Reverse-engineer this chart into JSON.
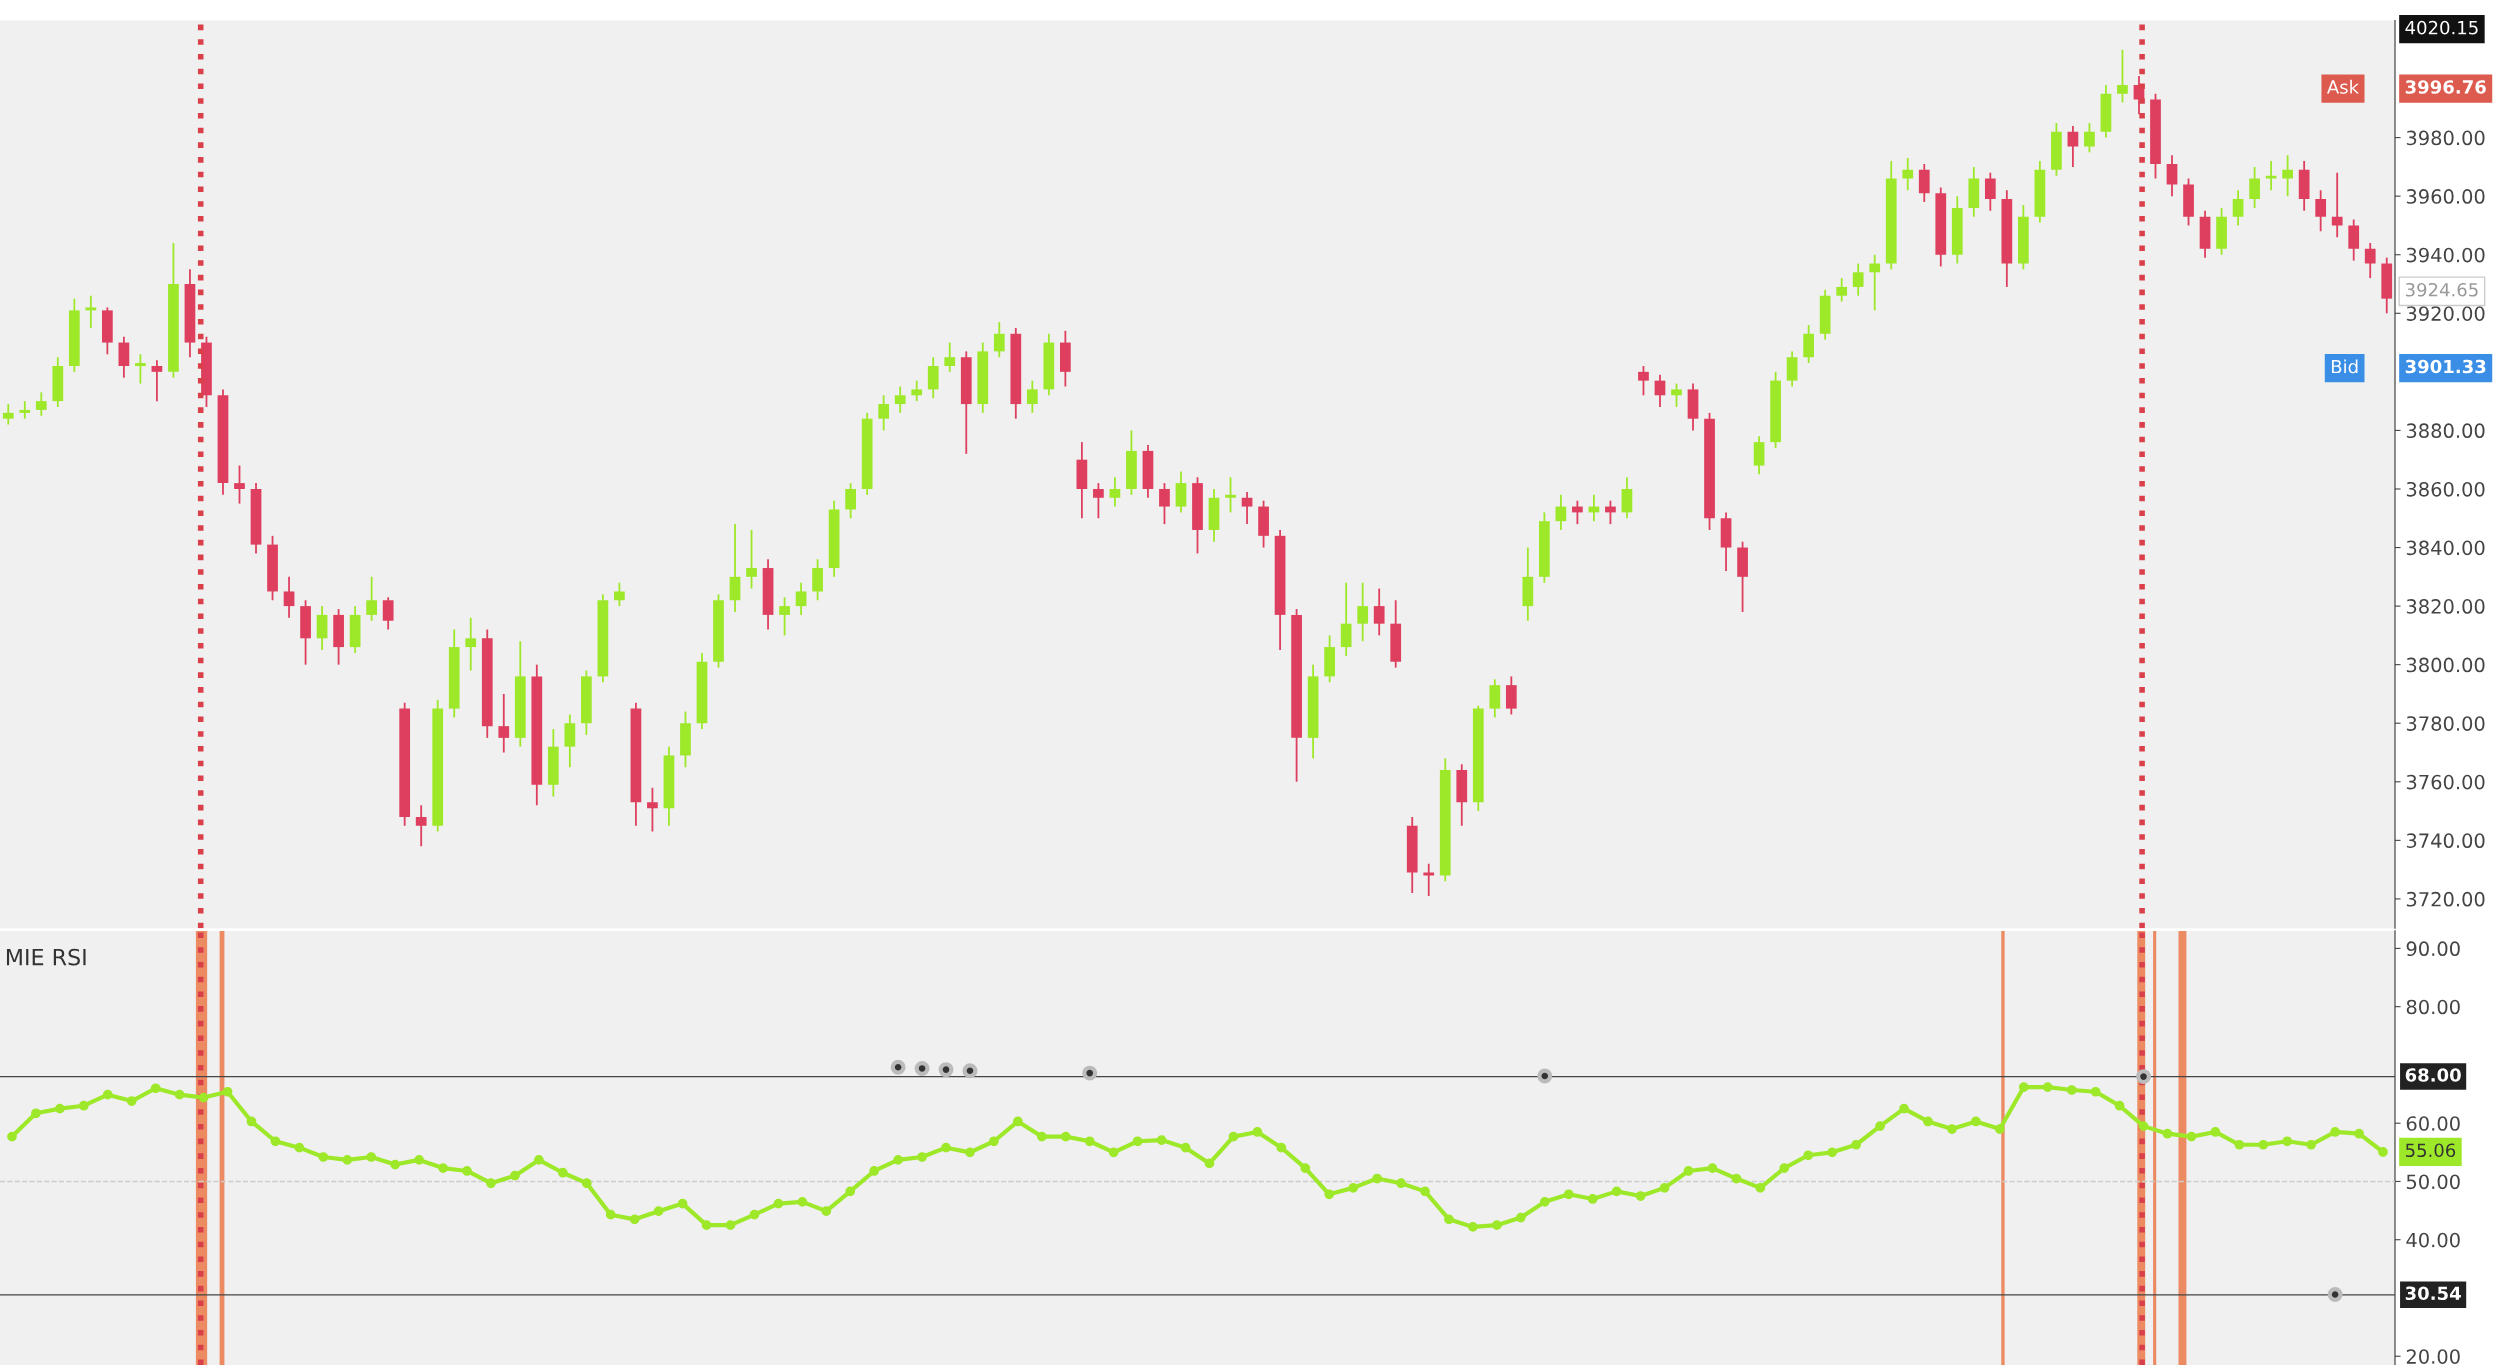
{
  "chart_data": [
    {
      "type": "candlestick",
      "ylim": [
        3710,
        4020
      ],
      "tick_labels": "y",
      "grid": false,
      "yticks": [
        {
          "value": 3720,
          "label": "3720.00"
        },
        {
          "value": 3740,
          "label": "3740.00"
        },
        {
          "value": 3760,
          "label": "3760.00"
        },
        {
          "value": 3780,
          "label": "3780.00"
        },
        {
          "value": 3800,
          "label": "3800.00"
        },
        {
          "value": 3820,
          "label": "3820.00"
        },
        {
          "value": 3840,
          "label": "3840.00"
        },
        {
          "value": 3860,
          "label": "3860.00"
        },
        {
          "value": 3880,
          "label": "3880.00"
        },
        {
          "value": 3920,
          "label": "3920.00"
        },
        {
          "value": 3940,
          "label": "3940.00"
        },
        {
          "value": 3960,
          "label": "3960.00"
        },
        {
          "value": 3980,
          "label": "3980.00"
        }
      ],
      "categories": [
        null,
        null,
        null,
        null,
        null,
        null,
        null,
        null,
        null,
        null,
        null,
        null,
        null,
        null,
        null,
        null,
        null,
        null,
        null,
        null,
        null,
        null,
        null,
        null,
        null,
        null,
        null,
        null,
        null,
        null,
        null,
        null,
        null,
        null,
        null,
        null,
        null,
        null,
        null,
        null,
        null,
        null,
        null,
        null,
        null,
        null,
        null,
        null,
        null,
        null,
        null,
        null,
        null,
        null,
        null,
        null,
        null,
        null,
        null,
        null,
        null,
        null,
        null,
        null,
        null,
        null,
        null,
        null,
        null,
        null,
        null,
        null,
        null,
        null,
        null,
        null,
        null,
        null,
        null,
        null,
        null,
        null,
        null,
        null,
        null,
        null,
        null,
        null,
        null,
        null,
        null,
        null,
        null,
        null,
        null,
        null,
        null,
        null,
        null,
        null,
        null,
        null,
        null,
        null,
        null,
        null,
        null,
        null,
        null,
        null,
        null,
        null,
        null,
        null,
        null,
        null,
        null,
        null,
        null,
        null,
        null,
        null,
        null,
        null,
        null,
        null,
        null,
        null,
        null,
        null,
        null,
        null,
        null,
        null,
        null,
        null,
        null,
        null,
        null,
        null,
        null,
        null,
        null,
        null,
        null
      ],
      "colors": [
        "#9ee82a",
        "#9ee82a",
        "#9ee82a",
        "#9ee82a",
        "#9ee82a",
        "#9ee82a",
        "#de3f5f",
        "#de3f5f",
        "#9ee82a",
        "#de3f5f",
        "#9ee82a",
        "#de3f5f",
        "#de3f5f",
        "#de3f5f",
        "#de3f5f",
        "#de3f5f",
        "#de3f5f",
        "#de3f5f",
        "#de3f5f",
        "#9ee82a",
        "#de3f5f",
        "#9ee82a",
        "#9ee82a",
        "#de3f5f",
        "#de3f5f",
        "#de3f5f",
        "#9ee82a",
        "#9ee82a",
        "#9ee82a",
        "#de3f5f",
        "#de3f5f",
        "#9ee82a",
        "#de3f5f",
        "#9ee82a",
        "#9ee82a",
        "#9ee82a",
        "#9ee82a",
        "#9ee82a",
        "#de3f5f",
        "#de3f5f",
        "#9ee82a",
        "#9ee82a",
        "#9ee82a",
        "#9ee82a",
        "#9ee82a",
        "#9ee82a",
        "#de3f5f",
        "#9ee82a",
        "#9ee82a",
        "#9ee82a",
        "#9ee82a",
        "#9ee82a",
        "#9ee82a",
        "#9ee82a",
        "#9ee82a",
        "#9ee82a",
        "#9ee82a",
        "#9ee82a",
        "#de3f5f",
        "#9ee82a",
        "#9ee82a",
        "#de3f5f",
        "#9ee82a",
        "#9ee82a",
        "#de3f5f",
        "#de3f5f",
        "#de3f5f",
        "#9ee82a",
        "#9ee82a",
        "#de3f5f",
        "#de3f5f",
        "#9ee82a",
        "#de3f5f",
        "#9ee82a",
        "#9ee82a",
        "#de3f5f",
        "#de3f5f",
        "#de3f5f",
        "#de3f5f",
        "#9ee82a",
        "#9ee82a",
        "#9ee82a",
        "#9ee82a",
        "#de3f5f",
        "#de3f5f",
        "#de3f5f",
        "#de3f5f",
        "#9ee82a",
        "#de3f5f",
        "#9ee82a",
        "#9ee82a",
        "#de3f5f",
        "#9ee82a",
        "#9ee82a",
        "#9ee82a",
        "#de3f5f",
        "#9ee82a",
        "#de3f5f",
        "#9ee82a",
        "#de3f5f",
        "#de3f5f",
        "#9ee82a",
        "#de3f5f",
        "#de3f5f",
        "#de3f5f",
        "#de3f5f",
        "#9ee82a",
        "#9ee82a",
        "#9ee82a",
        "#9ee82a",
        "#9ee82a",
        "#9ee82a",
        "#9ee82a",
        "#9ee82a",
        "#9ee82a",
        "#9ee82a",
        "#de3f5f",
        "#de3f5f",
        "#9ee82a",
        "#9ee82a",
        "#de3f5f",
        "#de3f5f",
        "#9ee82a",
        "#9ee82a",
        "#9ee82a",
        "#de3f5f",
        "#9ee82a",
        "#9ee82a",
        "#9ee82a",
        "#de3f5f",
        "#de3f5f",
        "#de3f5f",
        "#de3f5f",
        "#de3f5f",
        "#9ee82a",
        "#9ee82a",
        "#9ee82a",
        "#9ee82a",
        "#9ee82a",
        "#de3f5f",
        "#de3f5f",
        "#de3f5f",
        "#de3f5f",
        "#de3f5f",
        "#de3f5f"
      ],
      "ohlc": [
        [
          3884,
          3889,
          3882,
          3886
        ],
        [
          3886,
          3890,
          3884,
          3887
        ],
        [
          3887,
          3893,
          3885,
          3890
        ],
        [
          3890,
          3905,
          3888,
          3902
        ],
        [
          3902,
          3925,
          3900,
          3921
        ],
        [
          3921,
          3926,
          3915,
          3922
        ],
        [
          3921,
          3922,
          3906,
          3910
        ],
        [
          3910,
          3912,
          3898,
          3902
        ],
        [
          3902,
          3906,
          3896,
          3903
        ],
        [
          3902,
          3904,
          3890,
          3900
        ],
        [
          3900,
          3944,
          3898,
          3930
        ],
        [
          3930,
          3935,
          3905,
          3910
        ],
        [
          3910,
          3912,
          3888,
          3892
        ],
        [
          3892,
          3894,
          3858,
          3862
        ],
        [
          3862,
          3868,
          3855,
          3860
        ],
        [
          3860,
          3862,
          3838,
          3841
        ],
        [
          3841,
          3844,
          3822,
          3825
        ],
        [
          3825,
          3830,
          3816,
          3820
        ],
        [
          3820,
          3822,
          3800,
          3809
        ],
        [
          3809,
          3820,
          3805,
          3817
        ],
        [
          3817,
          3819,
          3800,
          3806
        ],
        [
          3806,
          3820,
          3804,
          3817
        ],
        [
          3817,
          3830,
          3815,
          3822
        ],
        [
          3822,
          3823,
          3812,
          3815
        ],
        [
          3785,
          3787,
          3745,
          3748
        ],
        [
          3748,
          3752,
          3738,
          3745
        ],
        [
          3745,
          3788,
          3743,
          3785
        ],
        [
          3785,
          3812,
          3782,
          3806
        ],
        [
          3806,
          3816,
          3798,
          3809
        ],
        [
          3809,
          3812,
          3775,
          3779
        ],
        [
          3779,
          3790,
          3770,
          3775
        ],
        [
          3775,
          3808,
          3772,
          3796
        ],
        [
          3796,
          3800,
          3752,
          3759
        ],
        [
          3759,
          3778,
          3755,
          3772
        ],
        [
          3772,
          3783,
          3765,
          3780
        ],
        [
          3780,
          3798,
          3776,
          3796
        ],
        [
          3796,
          3824,
          3794,
          3822
        ],
        [
          3822,
          3828,
          3820,
          3825
        ],
        [
          3785,
          3787,
          3745,
          3753
        ],
        [
          3753,
          3758,
          3743,
          3751
        ],
        [
          3751,
          3772,
          3745,
          3769
        ],
        [
          3769,
          3784,
          3765,
          3780
        ],
        [
          3780,
          3804,
          3778,
          3801
        ],
        [
          3801,
          3824,
          3799,
          3822
        ],
        [
          3822,
          3848,
          3818,
          3830
        ],
        [
          3830,
          3846,
          3826,
          3833
        ],
        [
          3833,
          3836,
          3812,
          3817
        ],
        [
          3817,
          3823,
          3810,
          3820
        ],
        [
          3820,
          3828,
          3817,
          3825
        ],
        [
          3825,
          3836,
          3822,
          3833
        ],
        [
          3833,
          3856,
          3830,
          3853
        ],
        [
          3853,
          3862,
          3850,
          3860
        ],
        [
          3860,
          3886,
          3858,
          3884
        ],
        [
          3884,
          3892,
          3880,
          3889
        ],
        [
          3889,
          3895,
          3886,
          3892
        ],
        [
          3892,
          3897,
          3890,
          3894
        ],
        [
          3894,
          3905,
          3891,
          3902
        ],
        [
          3902,
          3910,
          3900,
          3905
        ],
        [
          3905,
          3907,
          3872,
          3889
        ],
        [
          3889,
          3910,
          3886,
          3907
        ],
        [
          3907,
          3917,
          3905,
          3913
        ],
        [
          3913,
          3915,
          3884,
          3889
        ],
        [
          3889,
          3897,
          3886,
          3894
        ],
        [
          3894,
          3913,
          3892,
          3910
        ],
        [
          3910,
          3914,
          3895,
          3900
        ],
        [
          3870,
          3876,
          3850,
          3860
        ],
        [
          3860,
          3862,
          3850,
          3857
        ],
        [
          3857,
          3864,
          3854,
          3860
        ],
        [
          3860,
          3880,
          3858,
          3873
        ],
        [
          3873,
          3875,
          3857,
          3860
        ],
        [
          3860,
          3862,
          3848,
          3854
        ],
        [
          3854,
          3866,
          3852,
          3862
        ],
        [
          3862,
          3864,
          3838,
          3846
        ],
        [
          3846,
          3860,
          3842,
          3857
        ],
        [
          3857,
          3864,
          3852,
          3858
        ],
        [
          3857,
          3859,
          3848,
          3854
        ],
        [
          3854,
          3856,
          3840,
          3844
        ],
        [
          3844,
          3846,
          3805,
          3817
        ],
        [
          3817,
          3819,
          3760,
          3775
        ],
        [
          3775,
          3800,
          3768,
          3796
        ],
        [
          3796,
          3810,
          3794,
          3806
        ],
        [
          3806,
          3828,
          3803,
          3814
        ],
        [
          3814,
          3828,
          3808,
          3820
        ],
        [
          3820,
          3826,
          3810,
          3814
        ],
        [
          3814,
          3822,
          3799,
          3801
        ],
        [
          3745,
          3748,
          3722,
          3729
        ],
        [
          3729,
          3732,
          3721,
          3728
        ],
        [
          3728,
          3768,
          3726,
          3764
        ],
        [
          3764,
          3766,
          3745,
          3753
        ],
        [
          3753,
          3786,
          3750,
          3785
        ],
        [
          3785,
          3795,
          3782,
          3793
        ],
        [
          3793,
          3796,
          3783,
          3785
        ],
        [
          3820,
          3840,
          3815,
          3830
        ],
        [
          3830,
          3852,
          3828,
          3849
        ],
        [
          3849,
          3858,
          3846,
          3854
        ],
        [
          3854,
          3856,
          3848,
          3852
        ],
        [
          3852,
          3858,
          3849,
          3854
        ],
        [
          3854,
          3856,
          3848,
          3852
        ],
        [
          3852,
          3864,
          3850,
          3860
        ],
        [
          3900,
          3902,
          3892,
          3897
        ],
        [
          3897,
          3899,
          3888,
          3892
        ],
        [
          3892,
          3896,
          3888,
          3894
        ],
        [
          3894,
          3896,
          3880,
          3884
        ],
        [
          3884,
          3886,
          3846,
          3850
        ],
        [
          3850,
          3852,
          3832,
          3840
        ],
        [
          3840,
          3842,
          3818,
          3830
        ],
        [
          3868,
          3878,
          3865,
          3876
        ],
        [
          3876,
          3900,
          3874,
          3897
        ],
        [
          3897,
          3907,
          3895,
          3905
        ],
        [
          3905,
          3916,
          3903,
          3913
        ],
        [
          3913,
          3928,
          3911,
          3926
        ],
        [
          3926,
          3932,
          3924,
          3929
        ],
        [
          3929,
          3937,
          3926,
          3934
        ],
        [
          3934,
          3940,
          3921,
          3937
        ],
        [
          3937,
          3972,
          3935,
          3966
        ],
        [
          3966,
          3973,
          3962,
          3969
        ],
        [
          3969,
          3971,
          3958,
          3961
        ],
        [
          3961,
          3963,
          3936,
          3940
        ],
        [
          3940,
          3960,
          3937,
          3956
        ],
        [
          3956,
          3970,
          3953,
          3966
        ],
        [
          3966,
          3968,
          3955,
          3959
        ],
        [
          3959,
          3962,
          3929,
          3937
        ],
        [
          3937,
          3957,
          3935,
          3953
        ],
        [
          3953,
          3972,
          3951,
          3969
        ],
        [
          3969,
          3985,
          3967,
          3982
        ],
        [
          3982,
          3984,
          3970,
          3977
        ],
        [
          3977,
          3985,
          3975,
          3982
        ],
        [
          3982,
          3998,
          3980,
          3995
        ],
        [
          3995,
          4010,
          3992,
          3998
        ],
        [
          3998,
          4001,
          3988,
          3993
        ],
        [
          3993,
          3995,
          3966,
          3971
        ],
        [
          3971,
          3974,
          3960,
          3964
        ],
        [
          3964,
          3966,
          3950,
          3953
        ],
        [
          3953,
          3955,
          3939,
          3942
        ],
        [
          3942,
          3956,
          3940,
          3953
        ],
        [
          3953,
          3962,
          3950,
          3959
        ],
        [
          3959,
          3970,
          3956,
          3966
        ],
        [
          3966,
          3972,
          3962,
          3967
        ],
        [
          3966,
          3974,
          3960,
          3969
        ],
        [
          3969,
          3972,
          3955,
          3959
        ],
        [
          3959,
          3962,
          3948,
          3953
        ],
        [
          3953,
          3968,
          3946,
          3950
        ],
        [
          3950,
          3952,
          3938,
          3942
        ],
        [
          3942,
          3944,
          3932,
          3937
        ],
        [
          3937,
          3939,
          3920,
          3925
        ]
      ],
      "annotations": [
        "Ask",
        "3996.76",
        "Bid",
        "3901.33",
        "3924.65",
        "4020.15"
      ]
    },
    {
      "type": "line",
      "title": "MIE RSI",
      "ylim": [
        18.5,
        93
      ],
      "tick_labels": "y",
      "grid": false,
      "marker": "circle",
      "yticks": [
        {
          "value": 20,
          "label": "20.00"
        },
        {
          "value": 40,
          "label": "40.00"
        },
        {
          "value": 50,
          "label": "50.00"
        },
        {
          "value": 60,
          "label": "60.00"
        },
        {
          "value": 80,
          "label": "80.00"
        },
        {
          "value": 90,
          "label": "90.00"
        }
      ],
      "categories": [
        null,
        null,
        null,
        null,
        null,
        null,
        null,
        null,
        null,
        null,
        null,
        null,
        null,
        null,
        null,
        null,
        null,
        null,
        null,
        null,
        null,
        null,
        null,
        null,
        null,
        null,
        null,
        null,
        null,
        null,
        null,
        null,
        null,
        null,
        null,
        null,
        null,
        null,
        null,
        null,
        null,
        null,
        null,
        null,
        null,
        null,
        null,
        null,
        null,
        null,
        null,
        null,
        null,
        null,
        null,
        null,
        null,
        null,
        null,
        null,
        null,
        null,
        null,
        null,
        null,
        null,
        null,
        null,
        null,
        null,
        null,
        null,
        null,
        null,
        null,
        null,
        null,
        null,
        null,
        null,
        null,
        null,
        null,
        null,
        null,
        null,
        null,
        null,
        null,
        null,
        null,
        null,
        null,
        null,
        null,
        null,
        null,
        null,
        null,
        null
      ],
      "series": [
        {
          "type": "line",
          "color": "#9ee82a",
          "values": [
            57.7,
            61.7,
            62.5,
            63,
            64.9,
            63.8,
            66,
            64.9,
            64.4,
            65.4,
            60.3,
            56.9,
            55.8,
            54.2,
            53.7,
            54.2,
            52.9,
            53.7,
            52.3,
            51.8,
            49.7,
            51,
            53.7,
            51.5,
            49.7,
            44.3,
            43.5,
            44.9,
            46.2,
            42.5,
            42.5,
            44.3,
            46.2,
            46.5,
            44.9,
            48.3,
            51.8,
            53.7,
            54.2,
            55.8,
            55,
            56.9,
            60.3,
            57.7,
            57.7,
            56.9,
            55,
            56.9,
            57.1,
            55.8,
            53.1,
            57.7,
            58.5,
            55.8,
            52.3,
            47.8,
            48.9,
            50.5,
            49.7,
            48.3,
            43.5,
            42.2,
            42.5,
            43.8,
            46.5,
            47.8,
            47,
            48.3,
            47.5,
            48.9,
            51.8,
            52.3,
            50.5,
            48.9,
            52.3,
            54.5,
            55,
            56.3,
            59.5,
            62.5,
            60.3,
            59,
            60.3,
            59,
            66.2,
            66.2,
            65.7,
            65.4,
            63,
            59.5,
            58.2,
            57.7,
            58.5,
            56.3,
            56.3,
            56.9,
            56.3,
            58.5,
            58.2,
            55.06
          ]
        },
        {
          "type": "scatter",
          "color": "#333333",
          "values": [
            null,
            null,
            null,
            null,
            null,
            null,
            null,
            null,
            null,
            null,
            null,
            null,
            null,
            null,
            null,
            null,
            null,
            null,
            null,
            null,
            null,
            null,
            null,
            null,
            null,
            null,
            null,
            null,
            null,
            null,
            null,
            null,
            null,
            null,
            null,
            null,
            null,
            69.6,
            69.4,
            69.2,
            69,
            null,
            null,
            null,
            null,
            68.6,
            null,
            null,
            null,
            null,
            null,
            null,
            null,
            null,
            null,
            null,
            null,
            null,
            null,
            null,
            null,
            null,
            null,
            null,
            68.1,
            null,
            null,
            null,
            null,
            null,
            null,
            null,
            null,
            null,
            null,
            null,
            null,
            null,
            null,
            null,
            null,
            null,
            null,
            null,
            null,
            null,
            null,
            null,
            null,
            68,
            null,
            null,
            null,
            null,
            null,
            null,
            null,
            30.6,
            null,
            null
          ]
        }
      ],
      "ref_lines": [
        {
          "axis": "y",
          "value": 68,
          "label": "68.00",
          "color": "#444444",
          "line_style": "solid"
        },
        {
          "axis": "y",
          "value": 30.54,
          "label": "30.54",
          "color": "#444444",
          "line_style": "solid"
        },
        {
          "axis": "y",
          "value": 50,
          "color": "#cccccc",
          "line_style": "dashed"
        }
      ],
      "annotations": [
        "55.06"
      ]
    }
  ]
}
